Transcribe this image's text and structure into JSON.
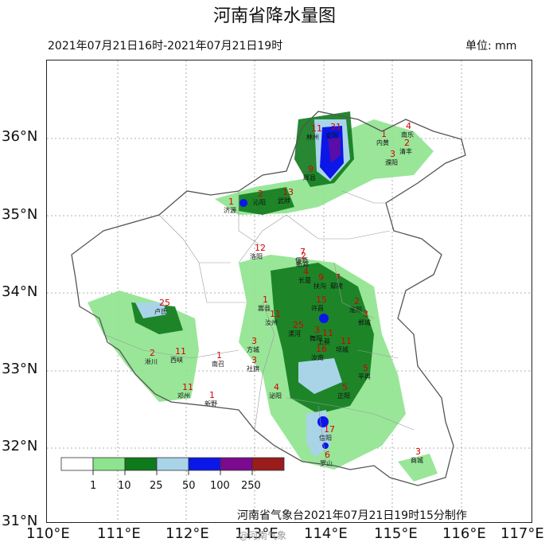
{
  "header": {
    "title": "河南省降水量图",
    "period": "2021年07月21日16时-2021年07月21日19时",
    "unit": "单位: mm"
  },
  "axes": {
    "lat_labels": [
      "36°N",
      "35°N",
      "34°N",
      "33°N",
      "32°N",
      "31°N"
    ],
    "lon_labels": [
      "110°E",
      "111°E",
      "112°E",
      "113°E",
      "114°E",
      "115°E",
      "116°E",
      "117°E"
    ]
  },
  "legend": {
    "labels": [
      "1",
      "10",
      "25",
      "50",
      "100",
      "250"
    ],
    "colors": [
      "#ffffff",
      "#8ee38e",
      "#0f7a1c",
      "#a9d4e8",
      "#0a17e8",
      "#7a0a8e",
      "#9a1c1c"
    ]
  },
  "map": {
    "province": "河南省",
    "stations": [
      {
        "name": "林州",
        "value": "11"
      },
      {
        "name": "安阳",
        "value": "31"
      },
      {
        "name": "内黄",
        "value": "1"
      },
      {
        "name": "南乐",
        "value": "4"
      },
      {
        "name": "清丰",
        "value": "2"
      },
      {
        "name": "濮阳",
        "value": "3"
      },
      {
        "name": "辉县",
        "value": "9"
      },
      {
        "name": "济源",
        "value": "1"
      },
      {
        "name": "沁阳",
        "value": "2"
      },
      {
        "name": "武陟",
        "value": "13"
      },
      {
        "name": "偃师",
        "value": "7"
      },
      {
        "name": "洛阳",
        "value": "12"
      },
      {
        "name": "新郑",
        "value": "2"
      },
      {
        "name": "长葛",
        "value": "4"
      },
      {
        "name": "卢氏",
        "value": "25"
      },
      {
        "name": "嵩县",
        "value": "1"
      },
      {
        "name": "汝州",
        "value": "11"
      },
      {
        "name": "鄢陵",
        "value": "7"
      },
      {
        "name": "扶沟",
        "value": "9"
      },
      {
        "name": "许昌",
        "value": "15"
      },
      {
        "name": "淮阳",
        "value": "2"
      },
      {
        "name": "郸城",
        "value": "3"
      },
      {
        "name": "舞阳",
        "value": "3"
      },
      {
        "name": "漯河",
        "value": "25"
      },
      {
        "name": "西峡",
        "value": "11"
      },
      {
        "name": "南召",
        "value": "1"
      },
      {
        "name": "方城",
        "value": "3"
      },
      {
        "name": "社旗",
        "value": "3"
      },
      {
        "name": "淅川",
        "value": "2"
      },
      {
        "name": "邓州",
        "value": "11"
      },
      {
        "name": "新野",
        "value": "1"
      },
      {
        "name": "泌阳",
        "value": "4"
      },
      {
        "name": "上蔡",
        "value": "11"
      },
      {
        "name": "项城",
        "value": "11"
      },
      {
        "name": "汝南",
        "value": "16"
      },
      {
        "name": "平舆",
        "value": "5"
      },
      {
        "name": "正阳",
        "value": "5"
      },
      {
        "name": "信阳",
        "value": "17"
      },
      {
        "name": "罗山",
        "value": "6"
      },
      {
        "name": "商城",
        "value": "3"
      }
    ]
  },
  "footer": {
    "credit": "河南省气象台2021年07月21日19时15分制作",
    "watermark": "@河南气象"
  }
}
